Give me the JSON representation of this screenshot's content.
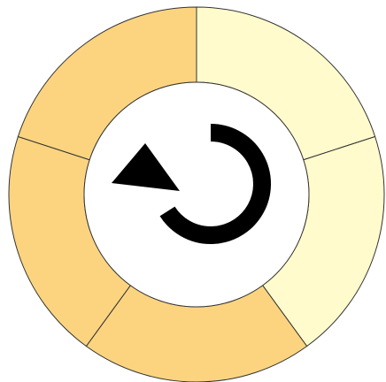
{
  "ring": {
    "segments": [
      {
        "color": "#fffbcc"
      },
      {
        "color": "#fffbcc"
      },
      {
        "color": "#fcd480"
      },
      {
        "color": "#fcd480"
      },
      {
        "color": "#fcd480"
      }
    ]
  }
}
